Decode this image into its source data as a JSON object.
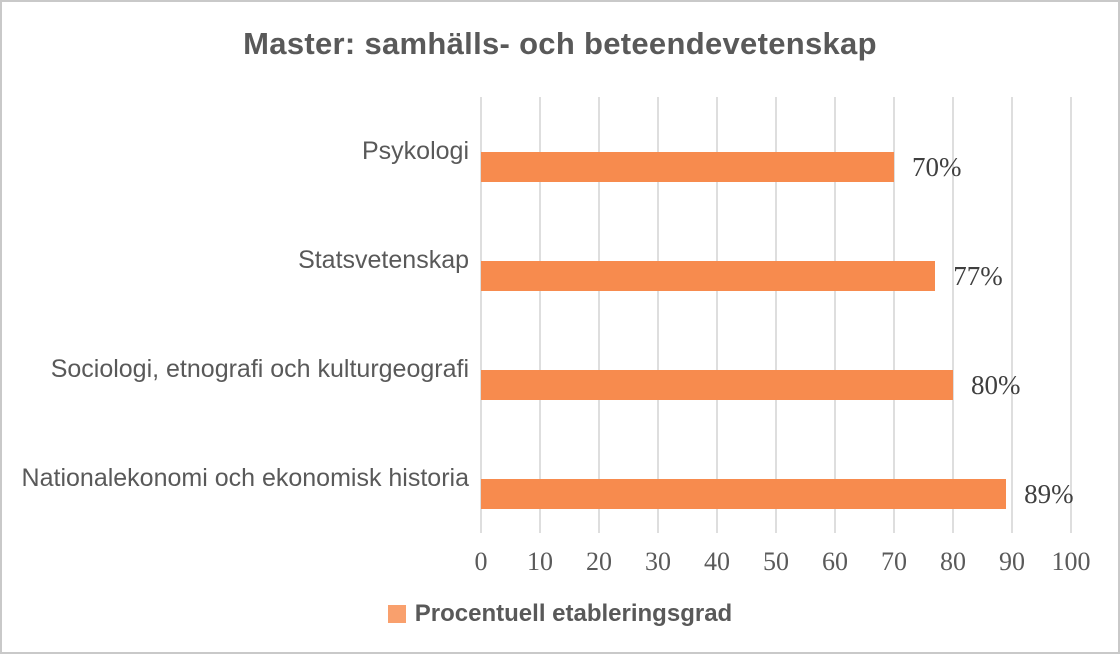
{
  "frame": {
    "background": "#ffffff",
    "border_color": "#c9c9c9"
  },
  "chart_data": {
    "type": "bar",
    "orientation": "horizontal",
    "title": "Master: samhälls- och beteendevetenskap",
    "categories": [
      "Psykologi",
      "Statsvetenskap",
      "Sociologi, etnografi och kulturgeografi",
      "Nationalekonomi och ekonomisk historia"
    ],
    "series": [
      {
        "name": "Procentuell etableringsgrad",
        "values": [
          70,
          77,
          80,
          89
        ],
        "value_labels": [
          "70%",
          "77%",
          "80%",
          "89%"
        ]
      }
    ],
    "xlim": [
      0,
      100
    ],
    "x_tick_labels": [
      "0",
      "10",
      "20",
      "30",
      "40",
      "50",
      "60",
      "70",
      "80",
      "90",
      "100"
    ],
    "grid": "vertical-gridlines-only",
    "legend": {
      "position": "bottom",
      "label": "Procentuell etableringsgrad"
    },
    "colors": {
      "bar": "#f78b4e",
      "legend_swatch": "#f9a06d",
      "gridline": "#dedede",
      "title_text": "#595959",
      "category_text": "#595959",
      "tick_text": "#5a5a5a",
      "value_text": "#3f3f3f"
    }
  }
}
